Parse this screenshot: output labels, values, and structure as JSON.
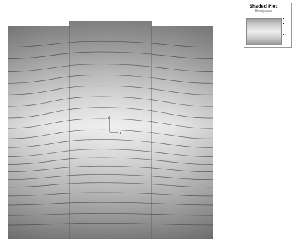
{
  "view": {
    "triad": {
      "y_label": "Y",
      "x_label": "X"
    }
  },
  "legend": {
    "title": "Shaded Plot",
    "subtitle": "Temperature",
    "unit": "F",
    "tick_labels": [
      "",
      "",
      "",
      "",
      "",
      ""
    ]
  },
  "colors": {
    "frame": "#ffffff",
    "edge_lines": "#555555",
    "contour_lines": "#3a3a3a"
  }
}
